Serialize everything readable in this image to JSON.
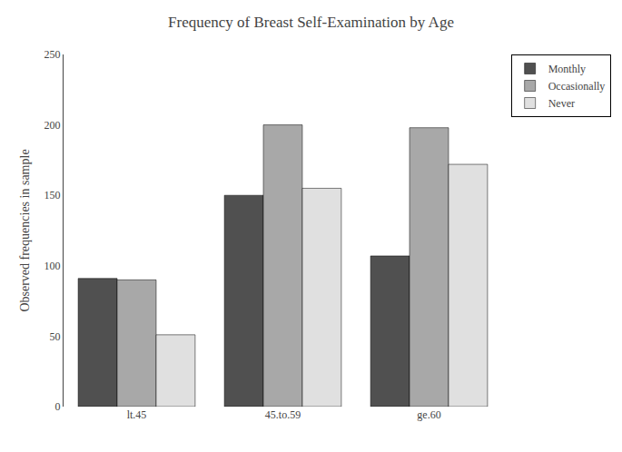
{
  "chart_data": {
    "type": "bar",
    "title": "Frequency of Breast Self-Examination by Age",
    "y_label": "Observed frequencies in sample",
    "categories": [
      "lt.45",
      "45.to.59",
      "ge.60"
    ],
    "series": [
      {
        "name": "Monthly",
        "color": "#505050",
        "values": [
          91,
          150,
          107
        ]
      },
      {
        "name": "Occasionally",
        "color": "#a8a8a8",
        "values": [
          90,
          200,
          198
        ]
      },
      {
        "name": "Never",
        "color": "#e0e0e0",
        "values": [
          51,
          155,
          172
        ]
      }
    ],
    "ylim": [
      0,
      250
    ],
    "yticks": [
      0,
      50,
      100,
      150,
      200,
      250
    ],
    "grid": false,
    "legend": "upper right"
  }
}
